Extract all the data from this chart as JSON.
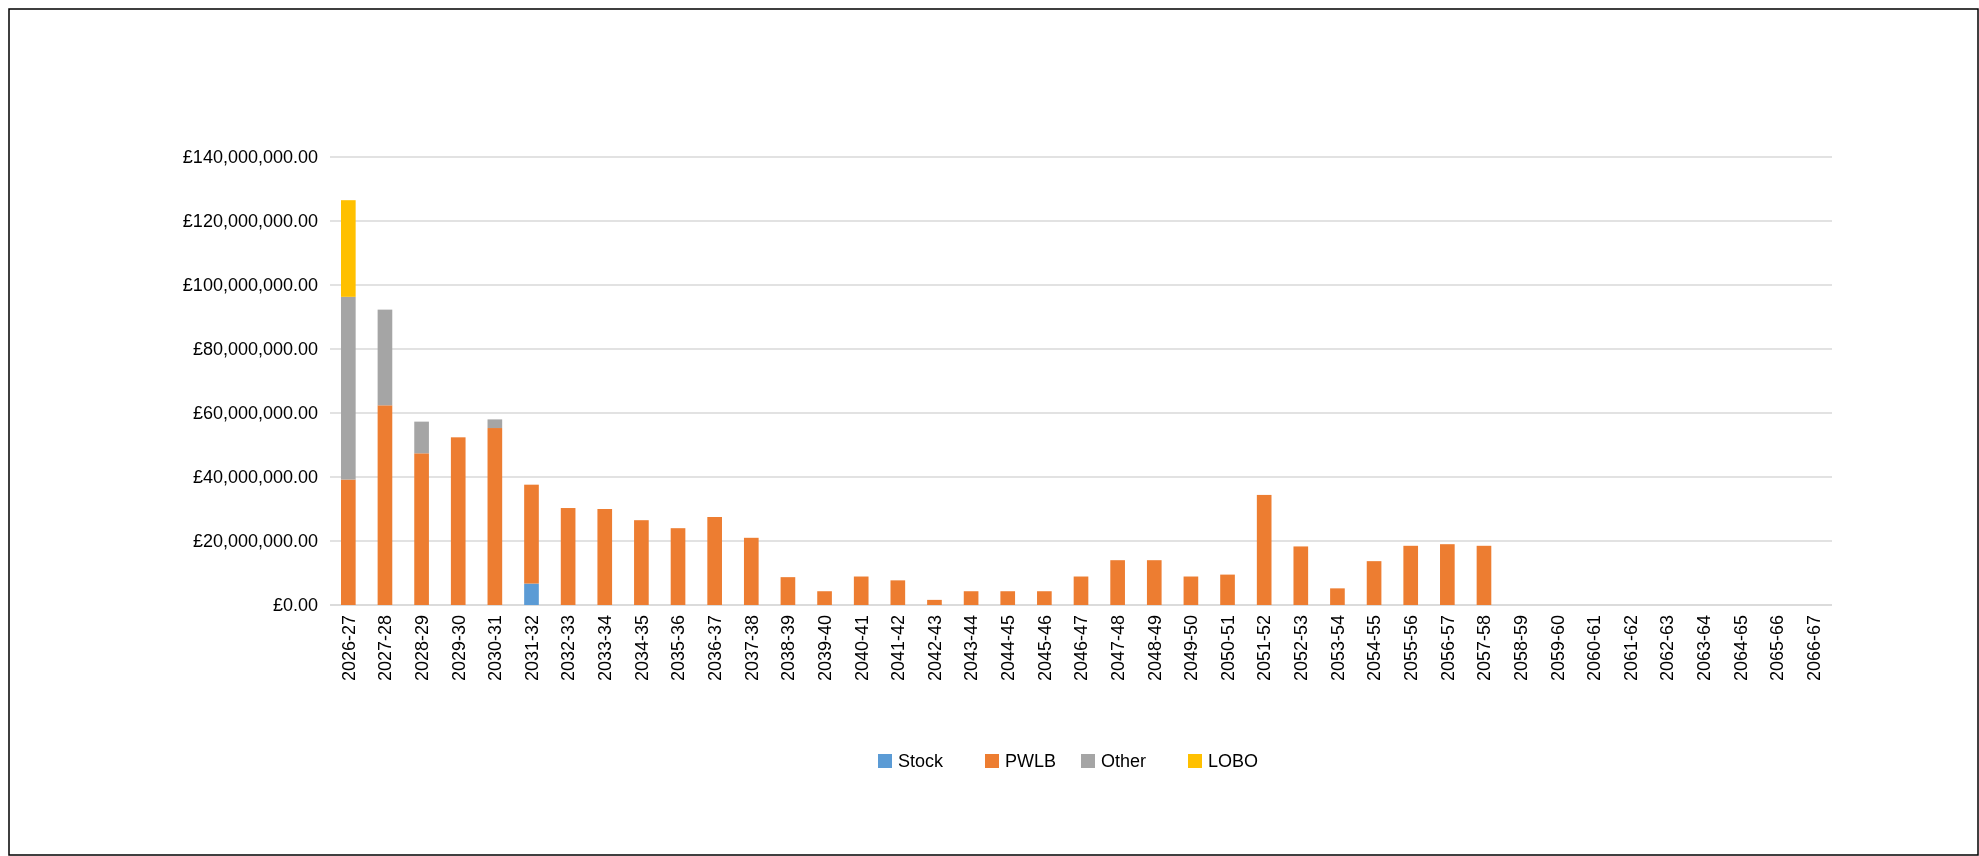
{
  "chart_data": {
    "type": "bar",
    "stacked": true,
    "categories": [
      "2026-27",
      "2027-28",
      "2028-29",
      "2029-30",
      "2030-31",
      "2031-32",
      "2032-33",
      "2033-34",
      "2034-35",
      "2035-36",
      "2036-37",
      "2037-38",
      "2038-39",
      "2039-40",
      "2040-41",
      "2041-42",
      "2042-43",
      "2043-44",
      "2044-45",
      "2045-46",
      "2046-47",
      "2047-48",
      "2048-49",
      "2049-50",
      "2050-51",
      "2051-52",
      "2052-53",
      "2053-54",
      "2054-55",
      "2055-56",
      "2056-57",
      "2057-58",
      "2058-59",
      "2059-60",
      "2060-61",
      "2061-62",
      "2062-63",
      "2063-64",
      "2064-65",
      "2065-66",
      "2066-67"
    ],
    "series": [
      {
        "name": "Stock",
        "color": "#5b9bd5",
        "values": [
          null,
          null,
          null,
          null,
          null,
          6700000,
          null,
          null,
          null,
          null,
          null,
          null,
          null,
          null,
          null,
          null,
          null,
          null,
          null,
          null,
          null,
          null,
          null,
          null,
          null,
          null,
          null,
          null,
          null,
          null,
          null,
          null,
          null,
          null,
          null,
          null,
          null,
          null,
          null,
          null,
          null
        ]
      },
      {
        "name": "PWLB",
        "color": "#ed7d31",
        "values": [
          39200000,
          62400000,
          47400000,
          52400000,
          55300000,
          30900000,
          30300000,
          30000000,
          26500000,
          24000000,
          27500000,
          21000000,
          8700000,
          4300000,
          8900000,
          7700000,
          1600000,
          4300000,
          4300000,
          4300000,
          8900000,
          14000000,
          14000000,
          8900000,
          9500000,
          34400000,
          18300000,
          5200000,
          13700000,
          18500000,
          19000000,
          18500000,
          null,
          null,
          null,
          null,
          null,
          null,
          null,
          null,
          null
        ]
      },
      {
        "name": "Other",
        "color": "#a5a5a5",
        "values": [
          57100000,
          29900000,
          9900000,
          null,
          2700000,
          null,
          null,
          null,
          null,
          null,
          null,
          null,
          null,
          null,
          null,
          null,
          null,
          null,
          null,
          null,
          null,
          null,
          null,
          null,
          null,
          null,
          null,
          null,
          null,
          null,
          null,
          null,
          null,
          null,
          null,
          null,
          null,
          null,
          null,
          null,
          null
        ]
      },
      {
        "name": "LOBO",
        "color": "#ffc000",
        "values": [
          30200000,
          null,
          null,
          null,
          null,
          null,
          null,
          null,
          null,
          null,
          null,
          null,
          null,
          null,
          null,
          null,
          null,
          null,
          null,
          null,
          null,
          null,
          null,
          null,
          null,
          null,
          null,
          null,
          null,
          null,
          null,
          null,
          null,
          null,
          null,
          null,
          null,
          null,
          null,
          null,
          null
        ]
      }
    ],
    "ylim": [
      0,
      140000000
    ],
    "yticks": [
      {
        "value": 0,
        "label": "£0.00"
      },
      {
        "value": 20000000,
        "label": "£20,000,000.00"
      },
      {
        "value": 40000000,
        "label": "£40,000,000.00"
      },
      {
        "value": 60000000,
        "label": "£60,000,000.00"
      },
      {
        "value": 80000000,
        "label": "£80,000,000.00"
      },
      {
        "value": 100000000,
        "label": "£100,000,000.00"
      },
      {
        "value": 120000000,
        "label": "£120,000,000.00"
      },
      {
        "value": 140000000,
        "label": "£140,000,000.00"
      }
    ],
    "grid": "y",
    "legend": "bottom"
  }
}
